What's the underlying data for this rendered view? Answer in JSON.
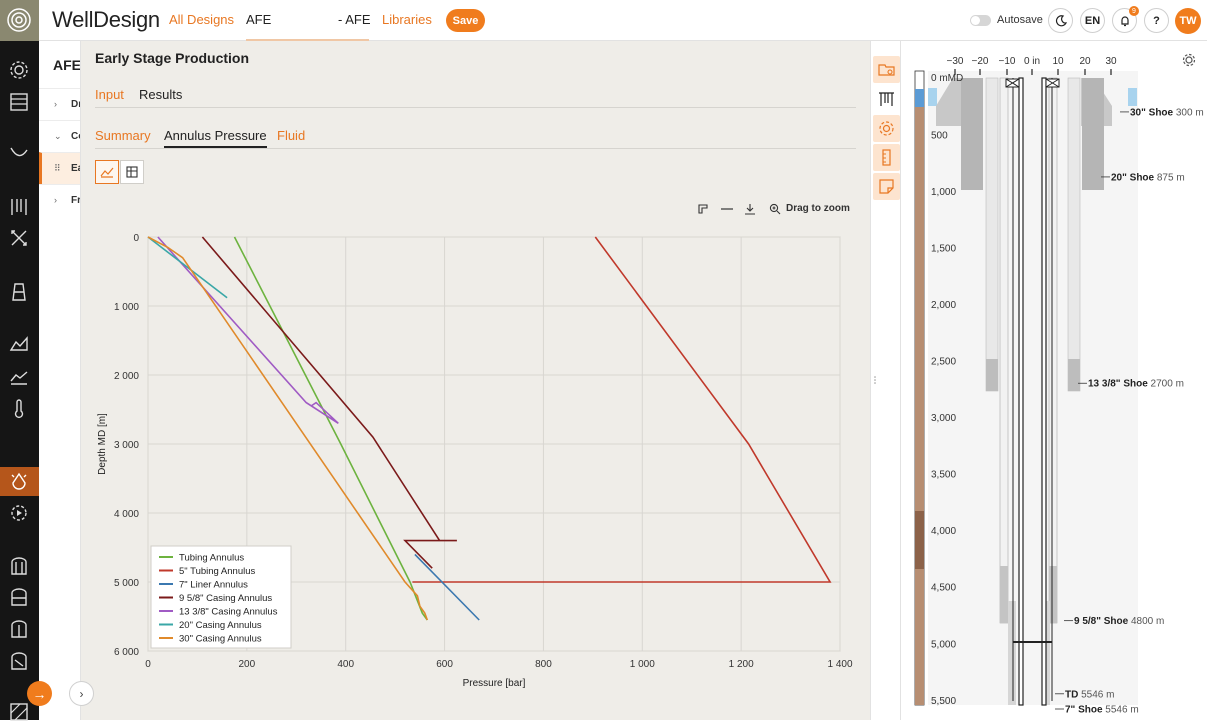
{
  "app": {
    "brand": "WellDesign"
  },
  "header": {
    "all_designs": "All Designs",
    "current": "AFE",
    "current_tab": "- AFE",
    "libraries": "Libraries",
    "save_label": "Save",
    "autosave_label": "Autosave",
    "language": "EN",
    "notifications_count": "9",
    "help": "?",
    "user_initials": "TW"
  },
  "tree": {
    "title": "AFE",
    "rows": [
      {
        "label": "Dr",
        "chevron": "›"
      },
      {
        "label": "Co",
        "chevron": "⌄"
      },
      {
        "label": "Ea",
        "chevron": "⠿"
      },
      {
        "label": "Fr",
        "chevron": "›"
      }
    ]
  },
  "page": {
    "title": "Early Stage Production",
    "tabs": [
      "Input",
      "Results"
    ],
    "subtabs": [
      "Summary",
      "Annulus Pressure",
      "Fluid"
    ],
    "toolbar": {
      "zoom_label": "Drag to zoom"
    }
  },
  "chart_data": {
    "type": "line",
    "xlabel": "Pressure [bar]",
    "ylabel": "Depth MD [m]",
    "xlim": [
      0,
      1400
    ],
    "ylim": [
      0,
      6000
    ],
    "y_inverted": true,
    "x_ticks": [
      "0",
      "200",
      "400",
      "600",
      "800",
      "1 000",
      "1 200",
      "1 400"
    ],
    "x_tick_values": [
      0,
      200,
      400,
      600,
      800,
      1000,
      1200,
      1400
    ],
    "y_ticks": [
      "0",
      "1 000",
      "2 000",
      "3 000",
      "4 000",
      "5 000",
      "6 000"
    ],
    "y_tick_values": [
      0,
      1000,
      2000,
      3000,
      4000,
      5000,
      6000
    ],
    "legend_position": "bottom-left",
    "grid": true,
    "series": [
      {
        "name": "Tubing Annulus",
        "color": "#6db33f",
        "points": [
          [
            175,
            0
          ],
          [
            390,
            3000
          ],
          [
            530,
            5000
          ],
          [
            555,
            5450
          ],
          [
            565,
            5550
          ]
        ]
      },
      {
        "name": "5\" Tubing Annulus",
        "color": "#c0392b",
        "points": [
          [
            905,
            0
          ],
          [
            1215,
            3000
          ],
          [
            1380,
            5000
          ],
          [
            535,
            5000
          ]
        ]
      },
      {
        "name": "7\" Liner Annulus",
        "color": "#3b78b0",
        "points": [
          [
            540,
            4600
          ],
          [
            670,
            5550
          ]
        ]
      },
      {
        "name": "9 5/8\" Casing Annulus",
        "color": "#7b1a1a",
        "points": [
          [
            110,
            0
          ],
          [
            455,
            2900
          ],
          [
            590,
            4400
          ],
          [
            625,
            4400
          ],
          [
            520,
            4400
          ],
          [
            575,
            4800
          ]
        ]
      },
      {
        "name": "13 3/8\" Casing Annulus",
        "color": "#a05bc4",
        "points": [
          [
            20,
            0
          ],
          [
            320,
            2400
          ],
          [
            385,
            2700
          ],
          [
            340,
            2400
          ],
          [
            330,
            2450
          ]
        ]
      },
      {
        "name": "20\" Casing Annulus",
        "color": "#3aa7a7",
        "points": [
          [
            0,
            0
          ],
          [
            160,
            880
          ]
        ]
      },
      {
        "name": "30\" Casing Annulus",
        "color": "#e08a2b",
        "points": [
          [
            0,
            0
          ],
          [
            40,
            150
          ],
          [
            70,
            300
          ],
          [
            520,
            5000
          ],
          [
            545,
            5200
          ],
          [
            550,
            5350
          ],
          [
            560,
            5450
          ],
          [
            565,
            5550
          ]
        ]
      }
    ]
  },
  "schematic": {
    "x_ticks": [
      "−30",
      "−20",
      "−10",
      "0 in",
      "10",
      "20",
      "30"
    ],
    "depth_label_top": "0 mMD",
    "depth_ticks": [
      "500",
      "1,000",
      "1,500",
      "2,000",
      "2,500",
      "3,000",
      "3,500",
      "4,000",
      "4,500",
      "5,000",
      "5,500"
    ],
    "shoes": [
      {
        "name": "30\" Shoe",
        "depth": "300 m"
      },
      {
        "name": "20\" Shoe",
        "depth": "875 m"
      },
      {
        "name": "13 3/8\" Shoe",
        "depth": "2700 m"
      },
      {
        "name": "9 5/8\" Shoe",
        "depth": "4800 m"
      },
      {
        "name": "TD",
        "depth": "5546 m"
      },
      {
        "name": "7\" Shoe",
        "depth": "5546 m"
      }
    ]
  }
}
